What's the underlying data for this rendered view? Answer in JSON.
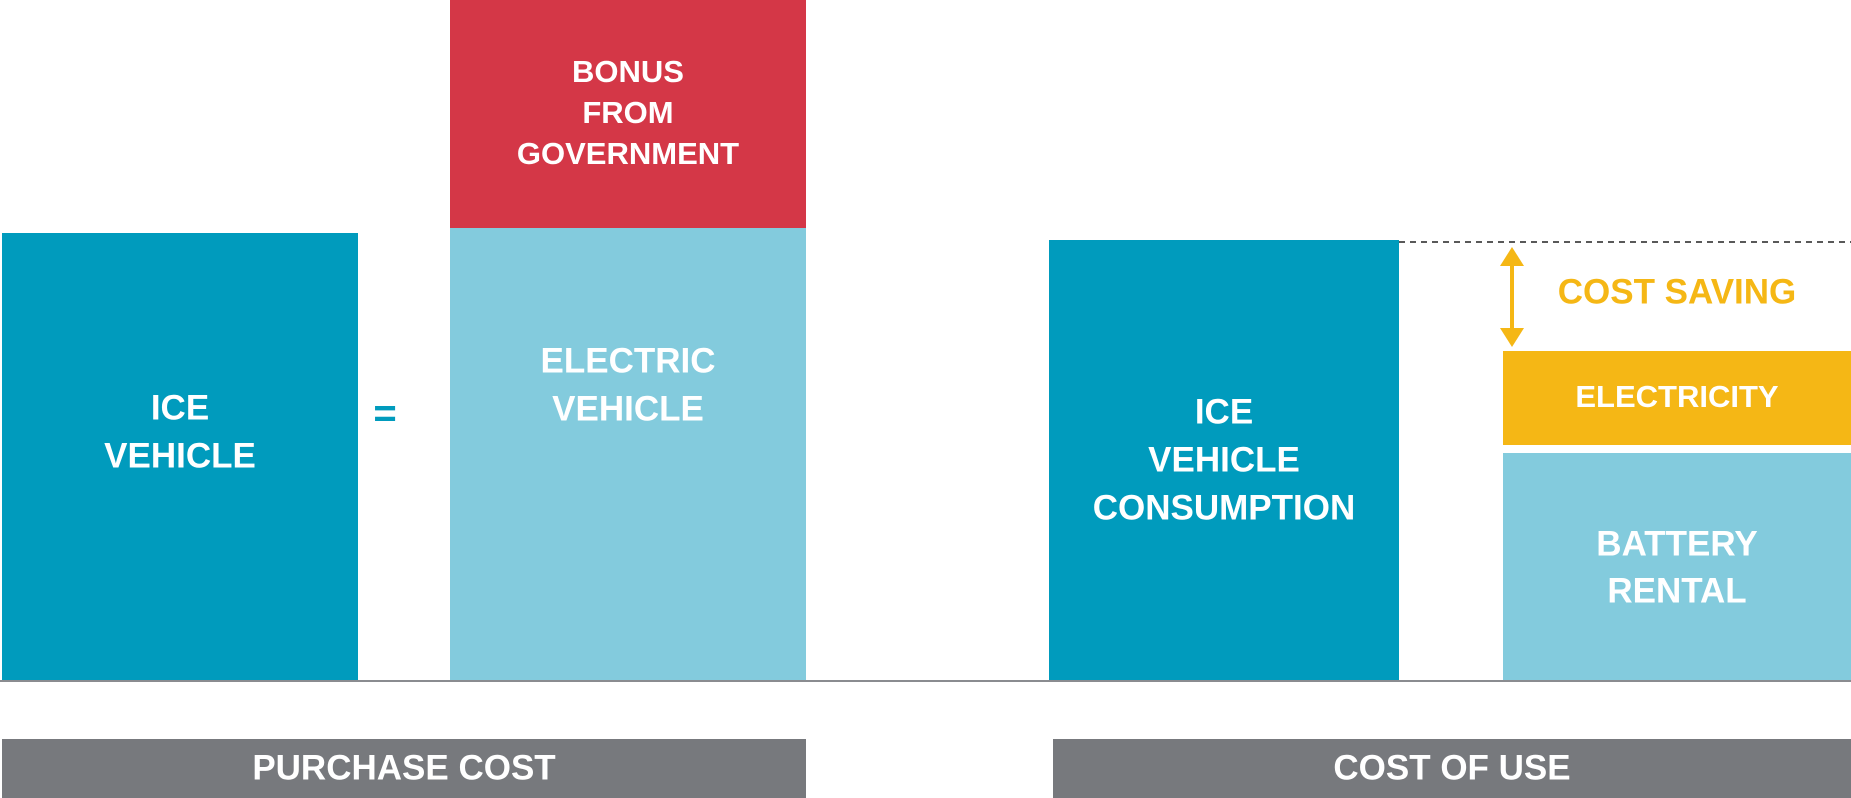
{
  "purchase": {
    "ice": [
      "ICE",
      "VEHICLE"
    ],
    "equals": "=",
    "electric": [
      "ELECTRIC",
      "VEHICLE"
    ],
    "bonus": [
      "BONUS",
      "FROM",
      "GOVERNMENT"
    ],
    "footer": "PURCHASE COST"
  },
  "use": {
    "ice": [
      "ICE",
      "VEHICLE",
      "CONSUMPTION"
    ],
    "saving": "COST SAVING",
    "electricity": "ELECTRICITY",
    "battery": [
      "BATTERY",
      "RENTAL"
    ],
    "footer": "COST OF USE"
  }
}
